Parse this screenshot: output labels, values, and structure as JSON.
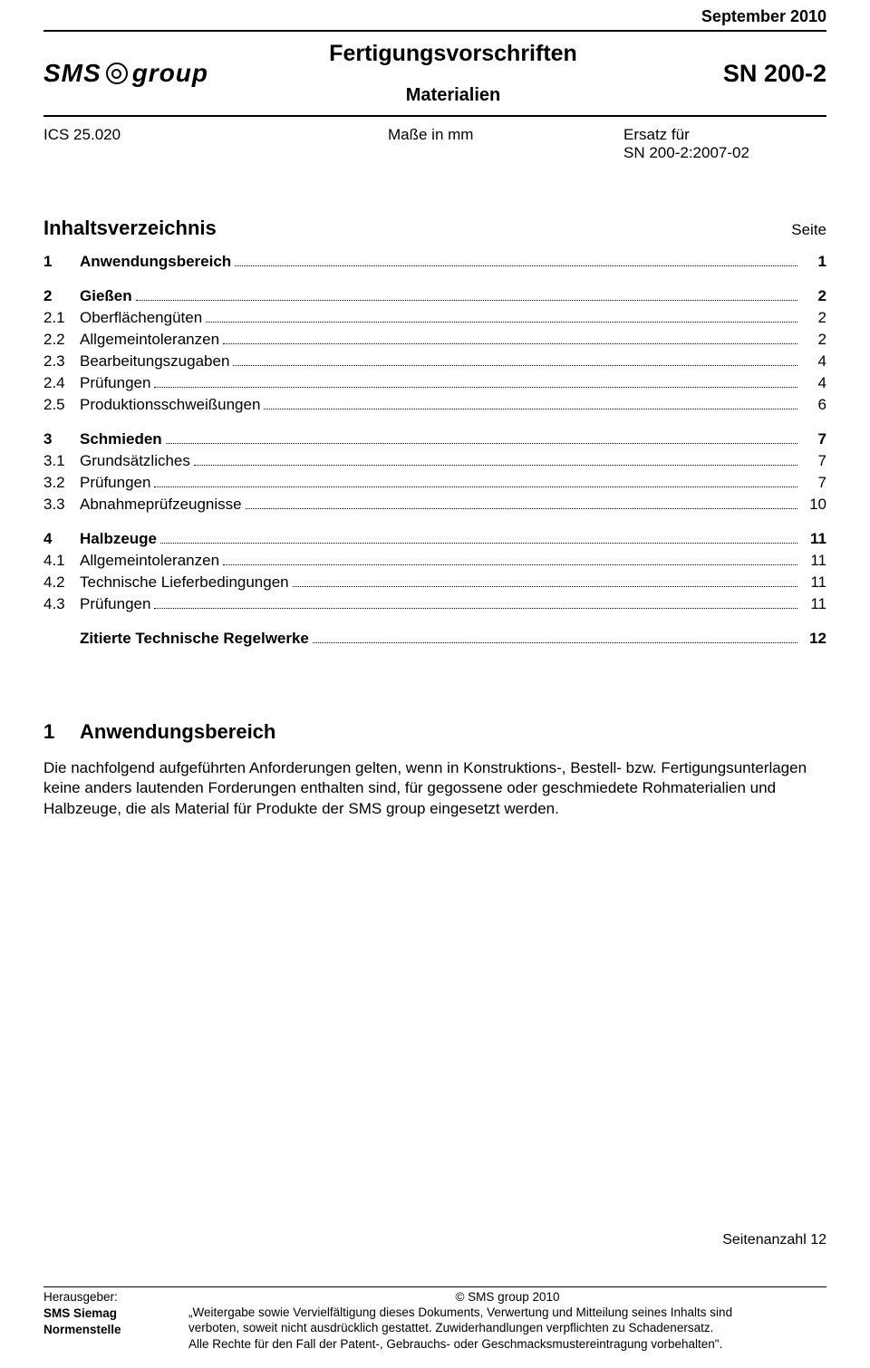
{
  "date_top": "September 2010",
  "logo": {
    "text_left": "SMS",
    "text_right": "group"
  },
  "title_main": "Fertigungsvorschriften",
  "title_sub": "Materialien",
  "doc_number": "SN 200-2",
  "meta": {
    "ics": "ICS 25.020",
    "units": "Maße in mm",
    "replaces_label": "Ersatz für",
    "replaces_value": "SN 200-2:2007-02"
  },
  "toc": {
    "heading": "Inhaltsverzeichnis",
    "page_label": "Seite",
    "items": [
      {
        "num": "1",
        "text": "Anwendungsbereich",
        "page": "1",
        "bold": true,
        "gap_after": true
      },
      {
        "num": "2",
        "text": "Gießen",
        "page": "2",
        "bold": true,
        "gap_after": false
      },
      {
        "num": "2.1",
        "text": "Oberflächengüten",
        "page": "2",
        "bold": false,
        "gap_after": false
      },
      {
        "num": "2.2",
        "text": "Allgemeintoleranzen",
        "page": "2",
        "bold": false,
        "gap_after": false
      },
      {
        "num": "2.3",
        "text": "Bearbeitungszugaben",
        "page": "4",
        "bold": false,
        "gap_after": false
      },
      {
        "num": "2.4",
        "text": "Prüfungen",
        "page": "4",
        "bold": false,
        "gap_after": false
      },
      {
        "num": "2.5",
        "text": "Produktionsschweißungen",
        "page": "6",
        "bold": false,
        "gap_after": true
      },
      {
        "num": "3",
        "text": "Schmieden",
        "page": "7",
        "bold": true,
        "gap_after": false
      },
      {
        "num": "3.1",
        "text": "Grundsätzliches",
        "page": "7",
        "bold": false,
        "gap_after": false
      },
      {
        "num": "3.2",
        "text": "Prüfungen",
        "page": "7",
        "bold": false,
        "gap_after": false
      },
      {
        "num": "3.3",
        "text": "Abnahmeprüfzeugnisse",
        "page": "10",
        "bold": false,
        "gap_after": true
      },
      {
        "num": "4",
        "text": "Halbzeuge",
        "page": "11",
        "bold": true,
        "gap_after": false
      },
      {
        "num": "4.1",
        "text": "Allgemeintoleranzen",
        "page": "11",
        "bold": false,
        "gap_after": false
      },
      {
        "num": "4.2",
        "text": "Technische Lieferbedingungen",
        "page": "11",
        "bold": false,
        "gap_after": false
      },
      {
        "num": "4.3",
        "text": "Prüfungen",
        "page": "11",
        "bold": false,
        "gap_after": true
      },
      {
        "num": "",
        "text": "Zitierte Technische Regelwerke",
        "page": "12",
        "bold": true,
        "gap_after": false
      }
    ]
  },
  "section1": {
    "num": "1",
    "title": "Anwendungsbereich",
    "body": "Die nachfolgend aufgeführten Anforderungen gelten, wenn in Konstruktions-, Bestell- bzw. Fertigungsunterlagen keine anders lautenden Forderungen enthalten sind, für gegossene oder geschmiedete Rohmaterialien und Halbzeuge, die als Material für Produkte der SMS group eingesetzt werden."
  },
  "page_count": "Seitenanzahl 12",
  "footer": {
    "issuer_label": "Herausgeber:",
    "issuer_name": "SMS Siemag",
    "issuer_sub": "Normenstelle",
    "copyright": "© SMS group 2010",
    "line1": "„Weitergabe sowie Vervielfältigung dieses Dokuments, Verwertung und Mitteilung seines Inhalts sind",
    "line2": "verboten, soweit nicht ausdrücklich gestattet. Zuwiderhandlungen verpflichten zu Schadenersatz.",
    "line3": "Alle Rechte für den Fall der Patent-, Gebrauchs- oder Geschmacksmustereintragung vorbehalten\"."
  }
}
